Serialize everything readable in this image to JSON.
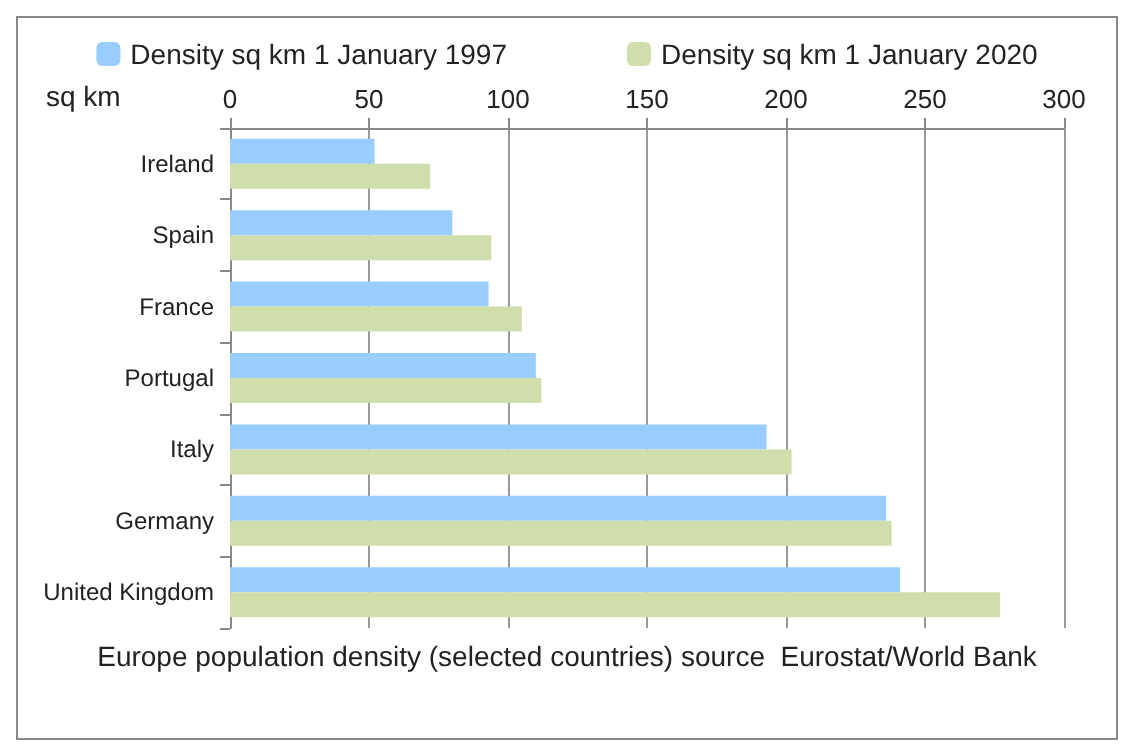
{
  "chart_data": {
    "type": "bar",
    "orientation": "horizontal",
    "xlabel": "sq km",
    "categories": [
      "Ireland",
      "Spain",
      "France",
      "Portugal",
      "Italy",
      "Germany",
      "United Kingdom"
    ],
    "series": [
      {
        "name": "Density sq km 1 January 1997",
        "color": "#99ccff",
        "values": [
          52,
          80,
          93,
          110,
          193,
          236,
          241
        ]
      },
      {
        "name": "Density sq km 1 January 2020",
        "color": "#cfdeab",
        "values": [
          72,
          94,
          105,
          112,
          202,
          238,
          277
        ]
      }
    ],
    "xlim": [
      0,
      300
    ],
    "xticks": [
      0,
      50,
      100,
      150,
      200,
      250,
      300
    ],
    "grid": "x",
    "legend": "top",
    "annotations": [
      "Europe population density (selected countries) source  Eurostat/World Bank"
    ]
  }
}
